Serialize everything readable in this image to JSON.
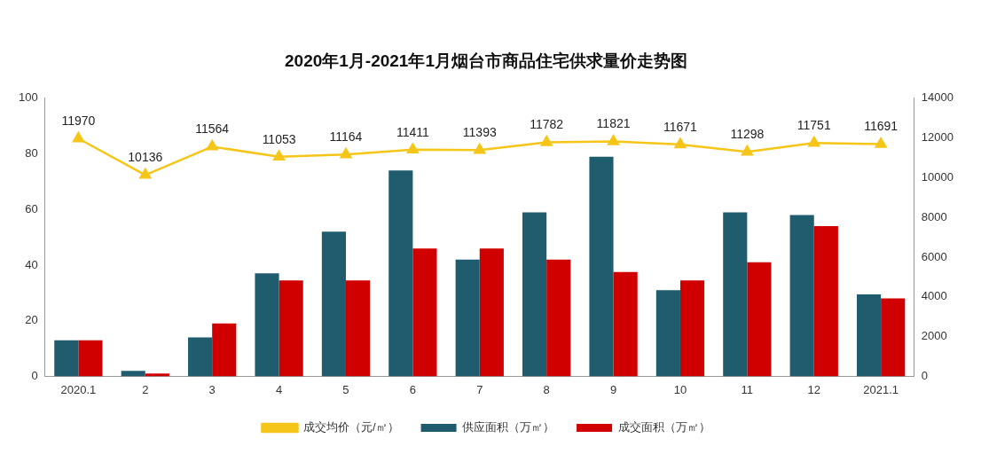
{
  "chart_data": {
    "type": "bar",
    "title": "2020年1月-2021年1月烟台市商品住宅供求量价走势图",
    "categories": [
      "2020.1",
      "2",
      "3",
      "4",
      "5",
      "6",
      "7",
      "8",
      "9",
      "10",
      "11",
      "12",
      "2021.1"
    ],
    "series": [
      {
        "name": "供应面积（万㎡）",
        "color": "#1f5c6e",
        "values": [
          13,
          2,
          14,
          37,
          52,
          74,
          42,
          59,
          79,
          31,
          59,
          58,
          29.5
        ]
      },
      {
        "name": "成交面积（万㎡）",
        "color": "#d00000",
        "values": [
          13,
          1,
          19,
          34.5,
          34.5,
          46,
          46,
          42,
          37.5,
          34.5,
          41,
          54,
          28
        ]
      },
      {
        "name": "成交均价（元/㎡）",
        "type": "line",
        "axis": "y2",
        "color": "#f5c518",
        "marker": "triangle",
        "values": [
          11970,
          10136,
          11564,
          11053,
          11164,
          11411,
          11393,
          11782,
          11821,
          11671,
          11298,
          11751,
          11691
        ],
        "value_labels": [
          "11970",
          "10136",
          "11564",
          "11053",
          "11164",
          "11411",
          "11393",
          "11782",
          "11821",
          "11671",
          "11298",
          "11751",
          "11691"
        ]
      }
    ],
    "ylim": [
      0,
      100
    ],
    "yticks": [
      0,
      20,
      40,
      60,
      80,
      100
    ],
    "y2lim": [
      0,
      14000
    ],
    "y2ticks": [
      0,
      2000,
      4000,
      6000,
      8000,
      10000,
      12000,
      14000
    ],
    "grid": false,
    "legend": "bottom"
  }
}
